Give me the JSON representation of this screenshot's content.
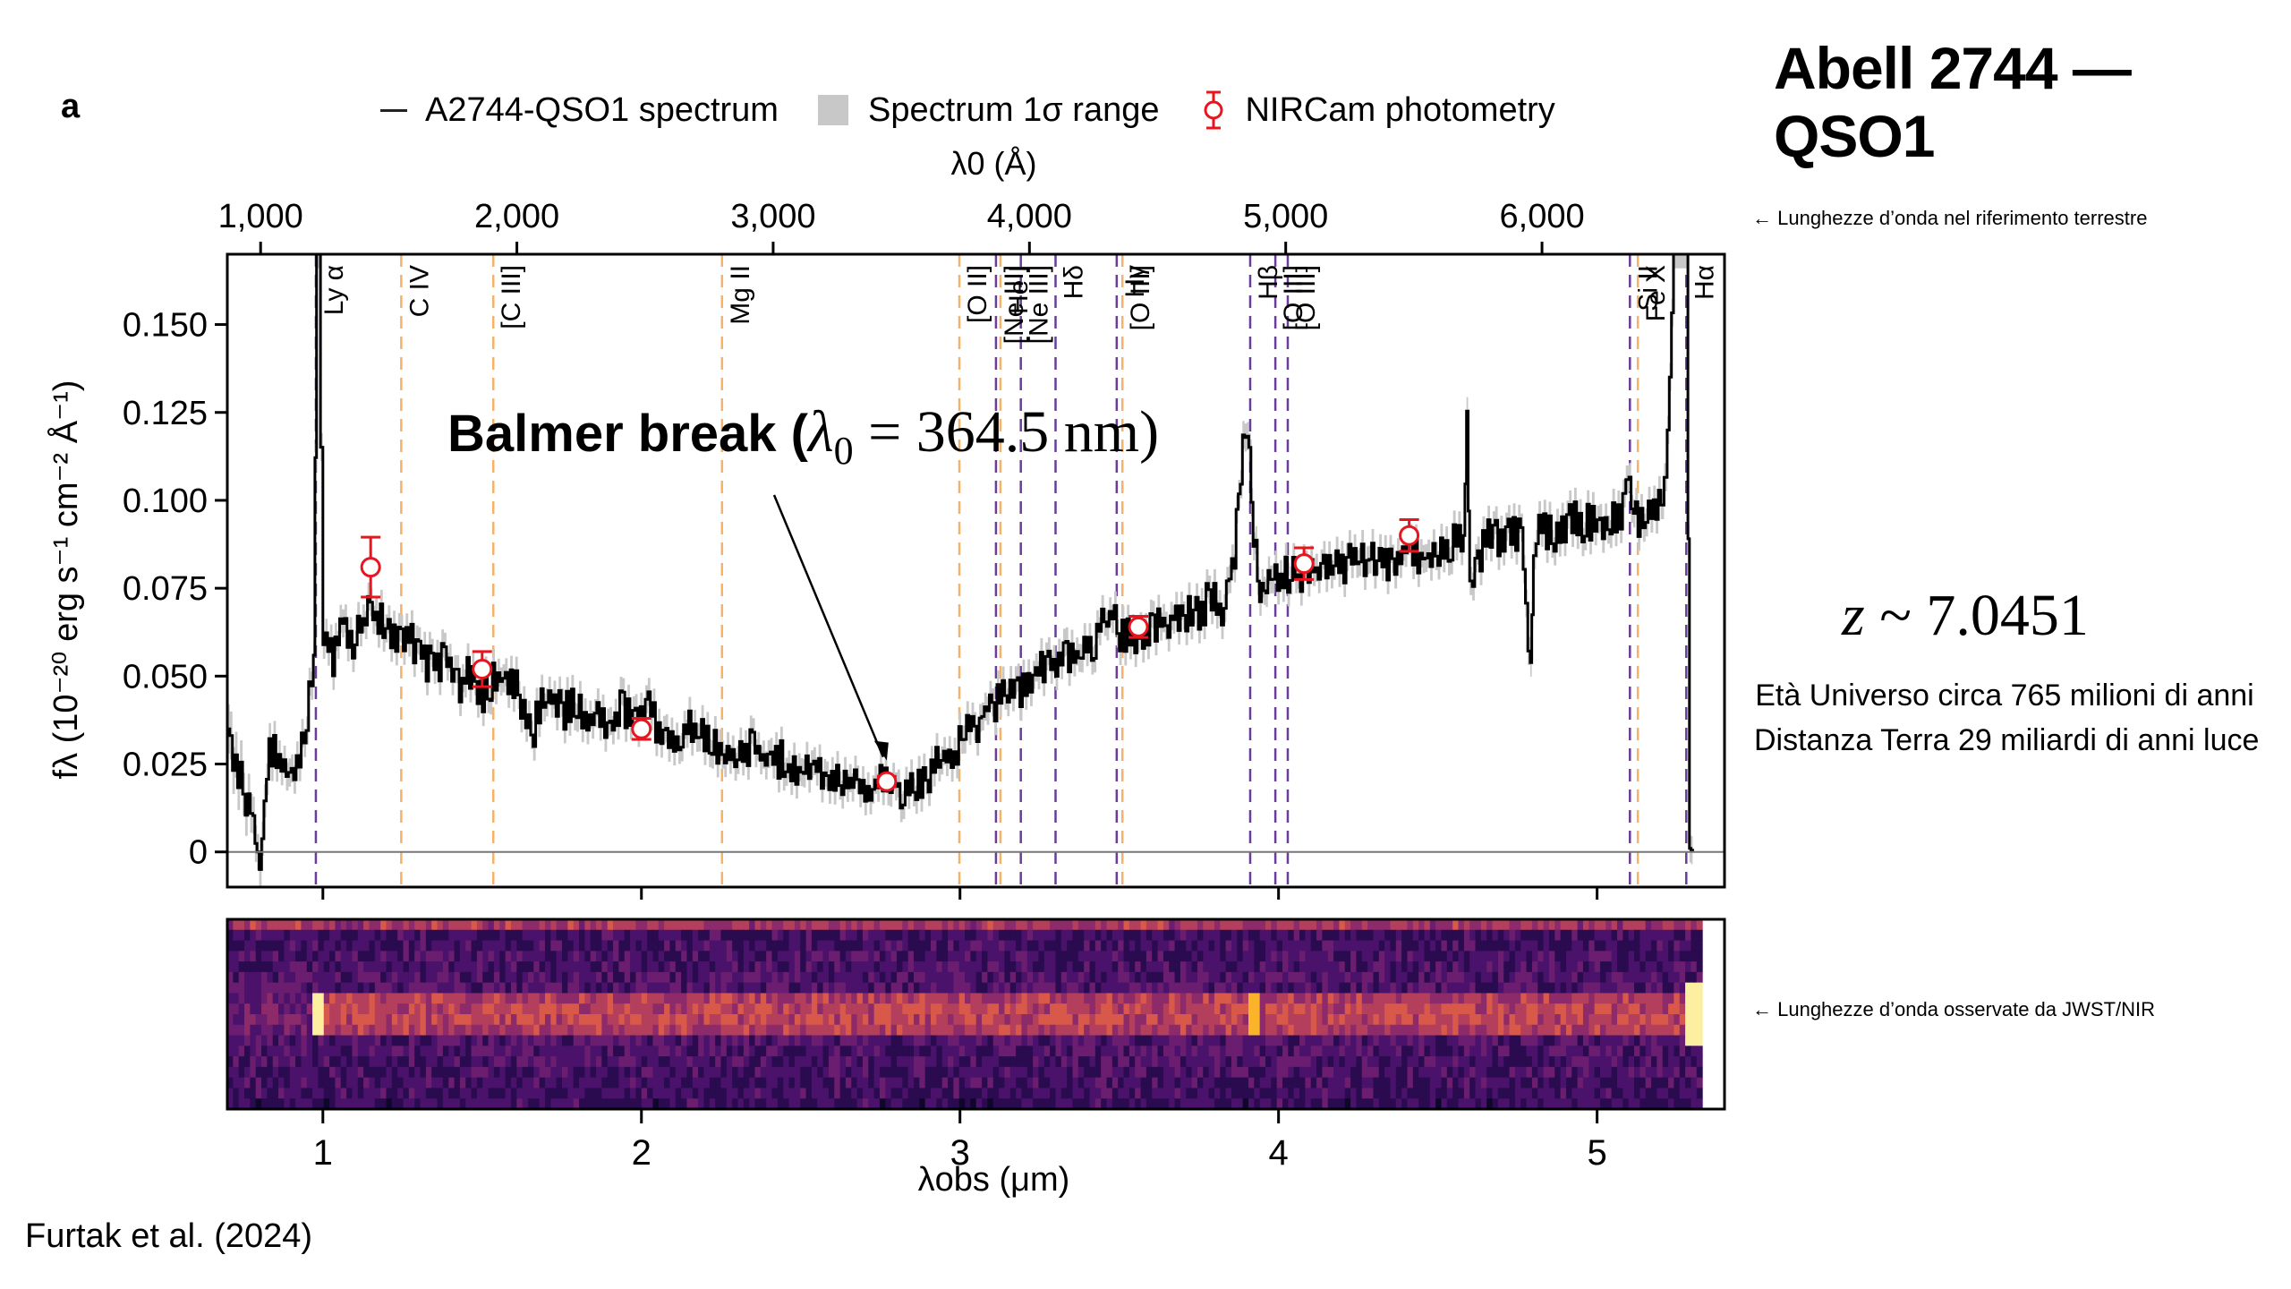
{
  "header": {
    "panel_label": "a",
    "title": "Abell 2744 — QSO1"
  },
  "legend": {
    "spectrum": "A2744-QSO1 spectrum",
    "range": "Spectrum 1σ range",
    "photometry": "NIRCam photometry"
  },
  "annotations": {
    "note_top": "← Lunghezze d’onda nel riferimento terrestre",
    "note_bottom": "← Lunghezze d’onda osservate da JWST/NIR",
    "balmer_text": "Balmer break (",
    "balmer_lambda": "λ",
    "balmer_sub": "0",
    "balmer_value": " = 364.5 nm)",
    "redshift_var": "z",
    "redshift_value": " ~ 7.0451",
    "age": "Età Universo circa 765 milioni di anni",
    "distance": "Distanza Terra 29 miliardi di anni luce",
    "credit": "Furtak et al. (2024)"
  },
  "colors": {
    "spectrum": "#000000",
    "sigma_band": "#c8c8c8",
    "photometry": "#e8141e",
    "line_emission_purple": "#6a3d9a",
    "line_other_orange": "#f5b26b",
    "zero_line": "#777777"
  },
  "chart_data": {
    "type": "line",
    "title": "A2744-QSO1 spectrum",
    "redshift": 7.0451,
    "xlabel": "λobs (μm)",
    "ylabel": "fλ (10⁻²⁰ erg s⁻¹ cm⁻² Å⁻¹)",
    "top_xlabel": "λ0 (Å)",
    "xlim": [
      0.7,
      5.4
    ],
    "ylim": [
      -0.01,
      0.17
    ],
    "grid": false,
    "legend_position": "top",
    "x_ticks": [
      1,
      2,
      3,
      4,
      5
    ],
    "x_tick_labels": [
      "1",
      "2",
      "3",
      "4",
      "5"
    ],
    "top_x_ticks": [
      1000,
      2000,
      3000,
      4000,
      5000,
      6000
    ],
    "top_x_tick_labels": [
      "1,000",
      "2,000",
      "3,000",
      "4,000",
      "5,000",
      "6,000"
    ],
    "y_ticks": [
      0,
      0.025,
      0.05,
      0.075,
      0.1,
      0.125,
      0.15
    ],
    "y_tick_labels": [
      "0",
      "0.025",
      "0.050",
      "0.075",
      "0.100",
      "0.125",
      "0.150"
    ],
    "spectrum": {
      "x": [
        0.7,
        0.74,
        0.78,
        0.8,
        0.83,
        0.86,
        0.9,
        0.94,
        0.97,
        0.98,
        0.985,
        1.0,
        1.03,
        1.06,
        1.1,
        1.14,
        1.18,
        1.22,
        1.26,
        1.3,
        1.34,
        1.38,
        1.42,
        1.46,
        1.5,
        1.54,
        1.58,
        1.62,
        1.66,
        1.7,
        1.74,
        1.78,
        1.82,
        1.86,
        1.9,
        1.94,
        1.98,
        2.02,
        2.06,
        2.1,
        2.14,
        2.18,
        2.22,
        2.26,
        2.3,
        2.34,
        2.38,
        2.42,
        2.46,
        2.5,
        2.54,
        2.58,
        2.62,
        2.66,
        2.7,
        2.74,
        2.78,
        2.82,
        2.86,
        2.9,
        2.94,
        2.98,
        3.02,
        3.06,
        3.1,
        3.14,
        3.18,
        3.22,
        3.26,
        3.3,
        3.34,
        3.38,
        3.42,
        3.46,
        3.5,
        3.54,
        3.58,
        3.62,
        3.66,
        3.7,
        3.74,
        3.78,
        3.82,
        3.86,
        3.88,
        3.9,
        3.92,
        3.94,
        3.96,
        3.98,
        4.02,
        4.06,
        4.1,
        4.14,
        4.18,
        4.22,
        4.26,
        4.3,
        4.34,
        4.38,
        4.42,
        4.46,
        4.5,
        4.54,
        4.58,
        4.59,
        4.6,
        4.64,
        4.68,
        4.72,
        4.76,
        4.79,
        4.8,
        4.84,
        4.88,
        4.92,
        4.96,
        5.0,
        5.04,
        5.08,
        5.1,
        5.12,
        5.16,
        5.2,
        5.22,
        5.24,
        5.26,
        5.28,
        5.29,
        5.3
      ],
      "y": [
        0.035,
        0.02,
        0.01,
        -0.005,
        0.03,
        0.025,
        0.02,
        0.03,
        0.06,
        0.17,
        0.17,
        0.06,
        0.055,
        0.065,
        0.06,
        0.07,
        0.065,
        0.062,
        0.06,
        0.058,
        0.052,
        0.055,
        0.048,
        0.05,
        0.045,
        0.05,
        0.048,
        0.044,
        0.035,
        0.046,
        0.04,
        0.042,
        0.038,
        0.04,
        0.036,
        0.042,
        0.035,
        0.04,
        0.034,
        0.03,
        0.036,
        0.033,
        0.031,
        0.03,
        0.028,
        0.03,
        0.026,
        0.027,
        0.024,
        0.022,
        0.024,
        0.021,
        0.02,
        0.021,
        0.018,
        0.019,
        0.02,
        0.018,
        0.019,
        0.022,
        0.025,
        0.028,
        0.034,
        0.038,
        0.042,
        0.044,
        0.046,
        0.05,
        0.052,
        0.054,
        0.055,
        0.058,
        0.06,
        0.07,
        0.062,
        0.06,
        0.063,
        0.065,
        0.066,
        0.067,
        0.068,
        0.072,
        0.07,
        0.085,
        0.11,
        0.122,
        0.09,
        0.075,
        0.077,
        0.078,
        0.079,
        0.078,
        0.08,
        0.08,
        0.081,
        0.083,
        0.082,
        0.084,
        0.083,
        0.085,
        0.086,
        0.084,
        0.087,
        0.088,
        0.087,
        0.12,
        0.075,
        0.088,
        0.09,
        0.089,
        0.091,
        0.05,
        0.09,
        0.092,
        0.091,
        0.094,
        0.093,
        0.095,
        0.094,
        0.096,
        0.105,
        0.095,
        0.094,
        0.098,
        0.12,
        0.17,
        0.17,
        0.17,
        0.001,
        0.0
      ]
    },
    "photometry": [
      {
        "x": 1.15,
        "y": 0.081,
        "err": 0.0085
      },
      {
        "x": 1.5,
        "y": 0.052,
        "err": 0.005
      },
      {
        "x": 2.0,
        "y": 0.035,
        "err": 0.003
      },
      {
        "x": 2.77,
        "y": 0.02,
        "err": 0.0015
      },
      {
        "x": 3.56,
        "y": 0.064,
        "err": 0.003
      },
      {
        "x": 4.08,
        "y": 0.082,
        "err": 0.0045
      },
      {
        "x": 4.41,
        "y": 0.09,
        "err": 0.0045
      }
    ],
    "emission_lines": [
      {
        "label": "Ly α",
        "x": 0.978,
        "kind": "purple"
      },
      {
        "label": "C IV",
        "x": 1.246,
        "kind": "orange"
      },
      {
        "label": "[C III]",
        "x": 1.535,
        "kind": "orange"
      },
      {
        "label": "Mg II",
        "x": 2.253,
        "kind": "orange"
      },
      {
        "label": "[O II]",
        "x": 2.998,
        "kind": "orange"
      },
      {
        "label": "[Ne III]",
        "x": 3.113,
        "kind": "purple"
      },
      {
        "label": "He I",
        "x": 3.127,
        "kind": "orange"
      },
      {
        "label": "[Ne III]",
        "x": 3.191,
        "kind": "purple"
      },
      {
        "label": "Hδ",
        "x": 3.3,
        "kind": "purple"
      },
      {
        "label": "Hγ",
        "x": 3.492,
        "kind": "purple"
      },
      {
        "label": "[O III]",
        "x": 3.51,
        "kind": "orange"
      },
      {
        "label": "Hβ",
        "x": 3.911,
        "kind": "purple"
      },
      {
        "label": "[O III]",
        "x": 3.99,
        "kind": "purple"
      },
      {
        "label": "[O III]",
        "x": 4.029,
        "kind": "purple"
      },
      {
        "label": "Si II",
        "x": 5.103,
        "kind": "purple"
      },
      {
        "label": "Fe X",
        "x": 5.128,
        "kind": "orange"
      },
      {
        "label": "Hα",
        "x": 5.28,
        "kind": "purple"
      }
    ],
    "annotation": {
      "text": "Balmer break (λ0 = 364.5 nm)",
      "points_to_x": 2.77
    }
  }
}
